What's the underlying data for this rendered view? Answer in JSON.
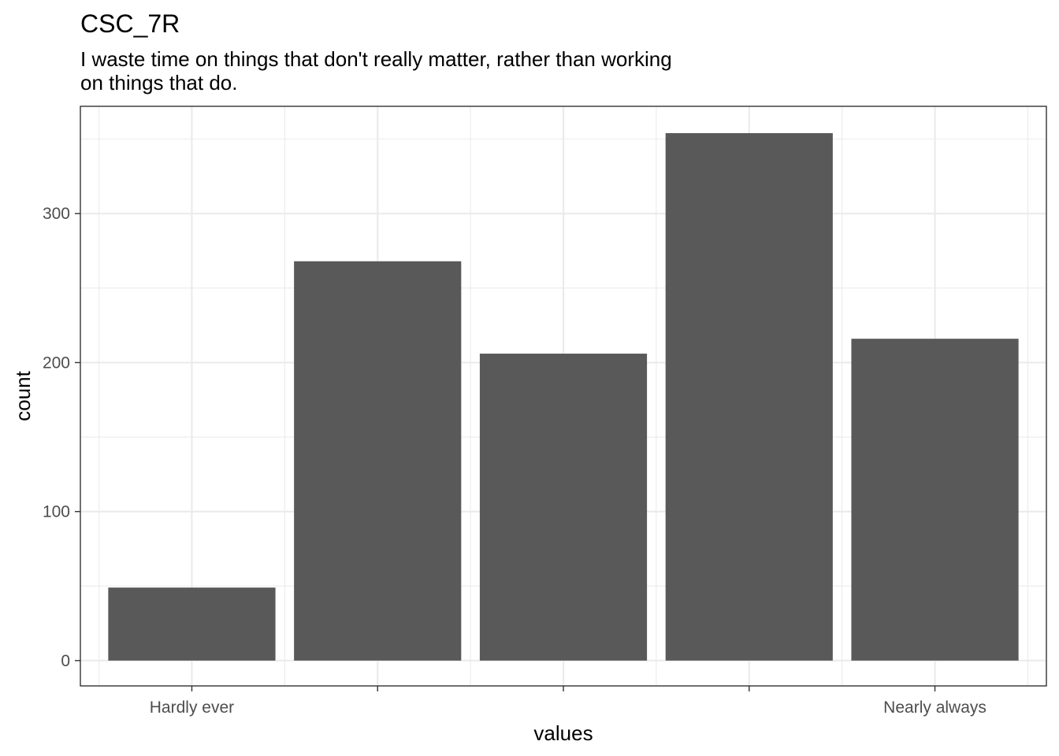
{
  "chart_data": {
    "type": "bar",
    "title": "CSC_7R",
    "subtitle": [
      "I waste time on things that don't really matter, rather than working",
      "on things that do."
    ],
    "xlabel": "values",
    "ylabel": "count",
    "categories": [
      "1",
      "2",
      "3",
      "4",
      "5"
    ],
    "x_tick_labels": [
      "Hardly ever",
      "",
      "",
      "",
      "Nearly always"
    ],
    "values": [
      49,
      268,
      206,
      354,
      216
    ],
    "ylim": [
      -17,
      372
    ],
    "yticks": [
      0,
      100,
      200,
      300
    ],
    "grid": true,
    "bar_color": "#595959",
    "panel_border_color": "#333333",
    "grid_color": "#ebebeb"
  }
}
